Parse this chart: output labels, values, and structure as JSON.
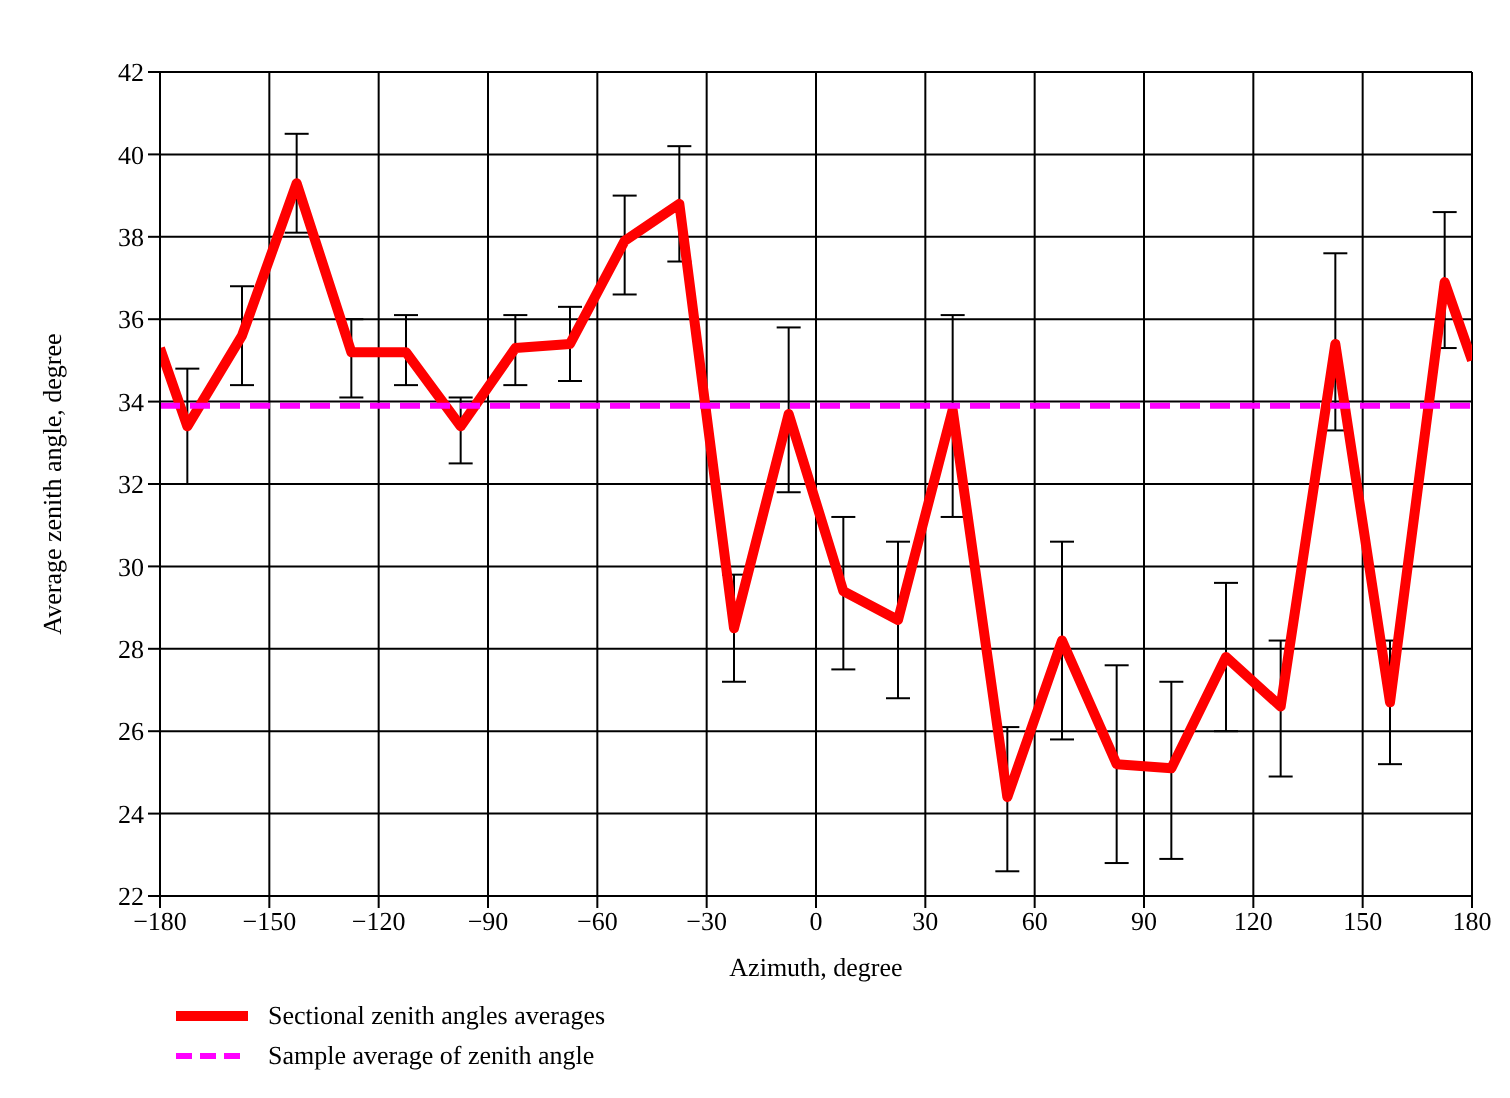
{
  "chart_data": {
    "type": "line",
    "xlabel": "Azimuth, degree",
    "ylabel": "Average zenith angle, degree",
    "xlim": [
      -180,
      180
    ],
    "xticks": [
      -180,
      -150,
      -120,
      -90,
      -60,
      -30,
      0,
      30,
      60,
      90,
      120,
      150,
      180
    ],
    "ylim": [
      22,
      42
    ],
    "yticks": [
      22,
      24,
      26,
      28,
      30,
      32,
      34,
      36,
      38,
      40,
      42
    ],
    "grid": true,
    "legend": "bottom left",
    "marker": "none",
    "series": [
      {
        "name": "Sectional zenith angles averages",
        "color": "#ff0000",
        "line_style": "solid",
        "x": [
          -180,
          -172.5,
          -157.5,
          -142.5,
          -127.5,
          -112.5,
          -97.5,
          -82.5,
          -67.5,
          -52.5,
          -37.5,
          -22.5,
          -7.5,
          7.5,
          22.5,
          37.5,
          52.5,
          67.5,
          82.5,
          97.5,
          112.5,
          127.5,
          142.5,
          157.5,
          172.5,
          180
        ],
        "values": [
          35.3,
          33.4,
          35.6,
          39.3,
          35.2,
          35.2,
          33.4,
          35.3,
          35.4,
          37.9,
          38.8,
          28.5,
          33.7,
          29.4,
          28.7,
          33.8,
          24.4,
          28.2,
          25.2,
          25.1,
          27.8,
          26.6,
          35.4,
          26.7,
          36.9,
          35.0
        ],
        "errors": [
          null,
          [
            32.0,
            34.8
          ],
          [
            34.4,
            36.8
          ],
          [
            38.1,
            40.5
          ],
          [
            34.1,
            36.0
          ],
          [
            34.4,
            36.1
          ],
          [
            32.5,
            34.1
          ],
          [
            34.4,
            36.1
          ],
          [
            34.5,
            36.3
          ],
          [
            36.6,
            39.0
          ],
          [
            37.4,
            40.2
          ],
          [
            27.2,
            29.8
          ],
          [
            31.8,
            35.8
          ],
          [
            27.5,
            31.2
          ],
          [
            26.8,
            30.6
          ],
          [
            31.2,
            36.1
          ],
          [
            22.6,
            26.1
          ],
          [
            25.8,
            30.6
          ],
          [
            22.8,
            27.6
          ],
          [
            22.9,
            27.2
          ],
          [
            26.0,
            29.6
          ],
          [
            24.9,
            28.2
          ],
          [
            33.3,
            37.6
          ],
          [
            25.2,
            28.2
          ],
          [
            35.3,
            38.6
          ],
          null
        ]
      },
      {
        "name": "Sample average of zenith angle",
        "color": "#ff00ff",
        "line_style": "dashed",
        "x": [
          -180,
          180
        ],
        "values": [
          33.9,
          33.9
        ]
      }
    ]
  }
}
